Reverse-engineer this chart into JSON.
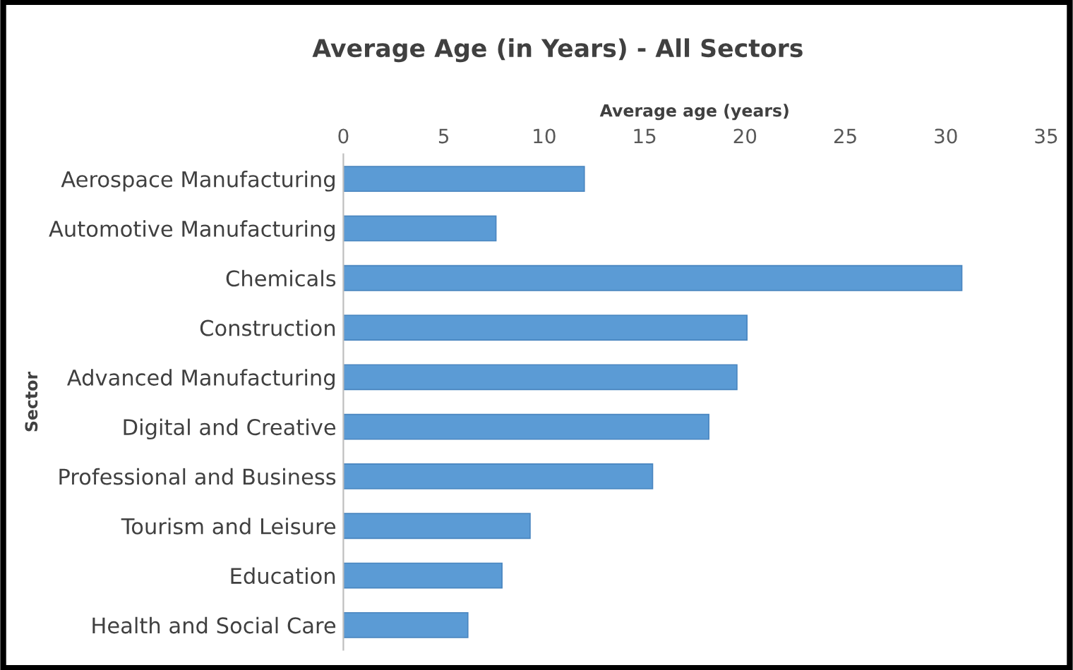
{
  "chart_data": {
    "type": "bar",
    "orientation": "horizontal",
    "title": "Average Age (in Years) - All Sectors",
    "xlabel": "Average age (years)",
    "ylabel": "Sector",
    "categories": [
      "Aerospace Manufacturing",
      "Automotive Manufacturing",
      "Chemicals",
      "Construction",
      "Advanced Manufacturing",
      "Digital and Creative",
      "Professional and Business",
      "Tourism and Leisure",
      "Education",
      "Health and Social Care"
    ],
    "values": [
      12.0,
      7.6,
      30.8,
      20.1,
      19.6,
      18.2,
      15.4,
      9.3,
      7.9,
      6.2
    ],
    "color": "#5b9bd5",
    "xlim": [
      0,
      35
    ],
    "xticks": [
      0,
      5,
      10,
      15,
      20,
      25,
      30,
      35
    ],
    "grid": false,
    "legend": false
  }
}
